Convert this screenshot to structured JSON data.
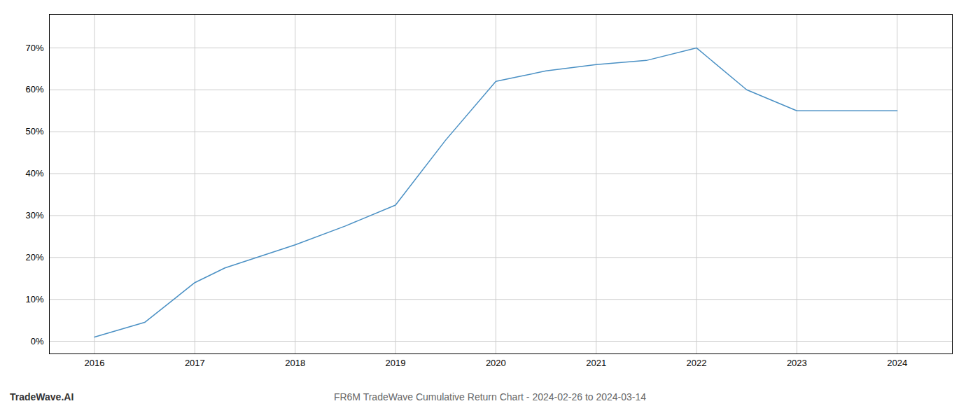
{
  "chart_data": {
    "type": "line",
    "title": "FR6M TradeWave Cumulative Return Chart - 2024-02-26 to 2024-03-14",
    "annotations": [
      "TradeWave.AI"
    ],
    "x": [
      2016,
      2016.5,
      2017,
      2017.3,
      2018,
      2018.5,
      2019,
      2019.5,
      2020,
      2020.2,
      2020.5,
      2021,
      2021.5,
      2022,
      2022.5,
      2023,
      2023.3,
      2023.6,
      2024
    ],
    "values": [
      1.0,
      4.5,
      14.0,
      17.5,
      23.0,
      27.5,
      32.5,
      48.0,
      62.0,
      63.0,
      64.5,
      66.0,
      67.0,
      70.0,
      60.0,
      55.0,
      55.0,
      55.0,
      55.0
    ],
    "color": "#4a90c4",
    "xlim": [
      2015.55,
      2024.55
    ],
    "ylim": [
      -3,
      78
    ],
    "xticks": [
      2016,
      2017,
      2018,
      2019,
      2020,
      2021,
      2022,
      2023,
      2024
    ],
    "yticks": [
      {
        "value": 0,
        "label": "0%"
      },
      {
        "value": 10,
        "label": "10%"
      },
      {
        "value": 20,
        "label": "20%"
      },
      {
        "value": 30,
        "label": "30%"
      },
      {
        "value": 40,
        "label": "40%"
      },
      {
        "value": 50,
        "label": "50%"
      },
      {
        "value": 60,
        "label": "60%"
      },
      {
        "value": 70,
        "label": "70%"
      }
    ],
    "grid": true
  }
}
